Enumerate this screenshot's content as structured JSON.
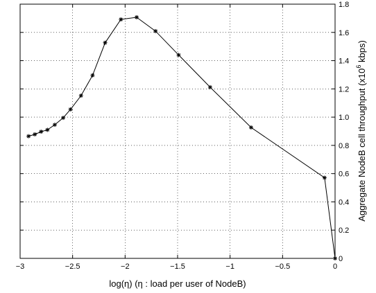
{
  "chart_data": {
    "type": "line",
    "xlabel": "log(η)   (η : load per user of NodeB)",
    "ylabel_prefix": "Aggregate NodeB cell throughput (x10",
    "ylabel_exp": "6",
    "ylabel_suffix": " kbps)",
    "xlim": [
      -3,
      0
    ],
    "ylim": [
      0,
      1.8
    ],
    "x_ticks": [
      -3,
      -2.5,
      -2,
      -1.5,
      -1,
      -0.5,
      0
    ],
    "x_tick_labels": [
      "−3",
      "−2.5",
      "−2",
      "−1.5",
      "−1",
      "−0.5",
      "0"
    ],
    "y_ticks": [
      0,
      0.2,
      0.4,
      0.6,
      0.8,
      1.0,
      1.2,
      1.4,
      1.6,
      1.8
    ],
    "y_tick_labels": [
      "0",
      "0.2",
      "0.4",
      "0.6",
      "0.8",
      "1.0",
      "1.2",
      "1.4",
      "1.6",
      "1.8"
    ],
    "y_axis_position": "right",
    "grid": true,
    "marker": "asterisk",
    "series": [
      {
        "color": "#000000",
        "x": [
          -2.92,
          -2.86,
          -2.8,
          -2.74,
          -2.67,
          -2.59,
          -2.52,
          -2.42,
          -2.31,
          -2.19,
          -2.04,
          -1.89,
          -1.71,
          -1.49,
          -1.19,
          -0.8,
          -0.1,
          0
        ],
        "y": [
          0.865,
          0.878,
          0.897,
          0.91,
          0.946,
          0.995,
          1.055,
          1.152,
          1.296,
          1.527,
          1.692,
          1.707,
          1.609,
          1.44,
          1.212,
          0.927,
          0.571,
          0.0
        ]
      }
    ]
  }
}
